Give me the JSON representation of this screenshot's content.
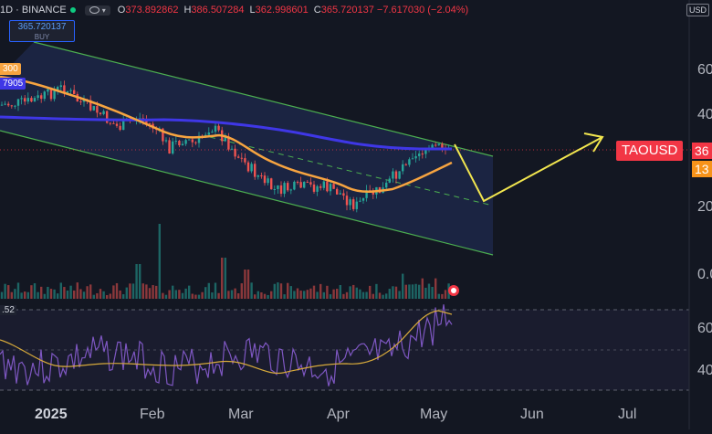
{
  "header": {
    "interval_exchange": "1D · BINANCE",
    "ohlc": [
      {
        "k": "O",
        "v": "373.892862"
      },
      {
        "k": "H",
        "v": "386.507284"
      },
      {
        "k": "L",
        "v": "362.998601"
      },
      {
        "k": "C",
        "v": "365.720137 −7.617030 (−2.04%)"
      }
    ]
  },
  "buy_box": {
    "price": "365.720137",
    "label": "BUY"
  },
  "indicator_labels": {
    "ema_short": "300",
    "ema_long": "7905"
  },
  "currency": "USD",
  "symbol": "TAOUSD",
  "price_tags": {
    "last": "36",
    "ema": "13"
  },
  "y_axis": [
    "60",
    "40",
    "20",
    "0.0"
  ],
  "x_axis": [
    "2025",
    "Feb",
    "Mar",
    "Apr",
    "May",
    "Jun",
    "Jul"
  ],
  "rsi": {
    "value": ".52",
    "levels": [
      "60",
      "40"
    ]
  },
  "colors": {
    "bg": "#131722",
    "up": "#26a69a",
    "down": "#ef5350",
    "channel": "#4caf50",
    "ema_long": "#3f37e6",
    "ema_short": "#f7a440",
    "projection": "#f2e64f",
    "rsi_line": "#7e57c2",
    "rsi_ma": "#d6a93b"
  }
}
